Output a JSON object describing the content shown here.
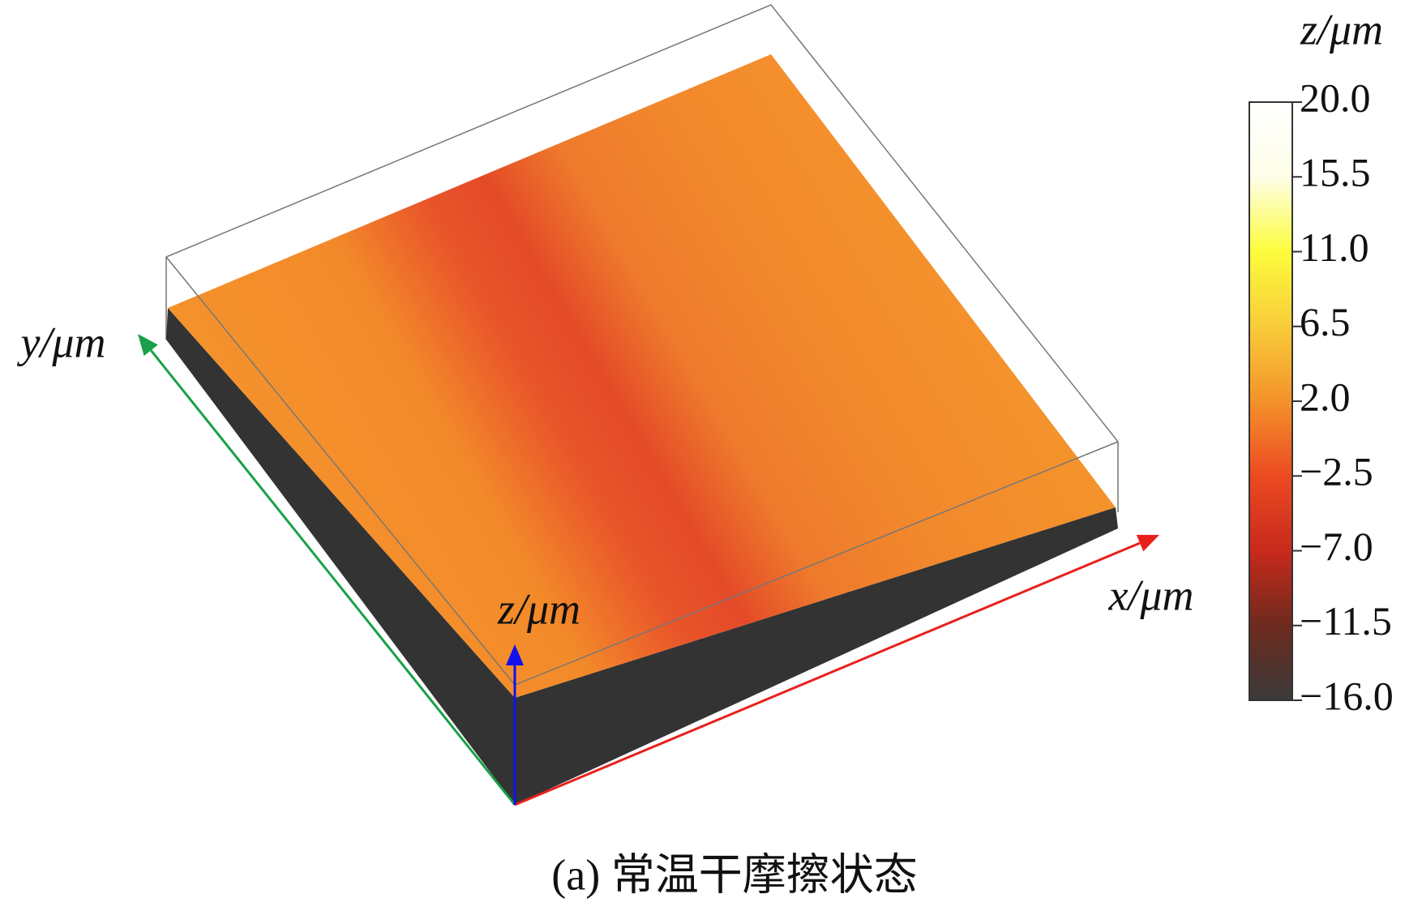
{
  "chart_data": {
    "type": "surface3d",
    "caption": "(a) 常温干摩擦状态",
    "xlabel": "x/μm",
    "ylabel": "y/μm",
    "zlabel": "z/μm",
    "x_axis_color": "#e8201c",
    "y_axis_color": "#1aa04a",
    "z_axis_color": "#1010f0",
    "colorbar": {
      "title": "z/μm",
      "lim": [
        -16,
        20
      ],
      "ticks": [
        {
          "value": 20,
          "label": "20.0"
        },
        {
          "value": 15.5,
          "label": "15.5"
        },
        {
          "value": 11,
          "label": "11.0"
        },
        {
          "value": 6.5,
          "label": "6.5"
        },
        {
          "value": 2,
          "label": "2.0"
        },
        {
          "value": -2.5,
          "label": "−2.5"
        },
        {
          "value": -7,
          "label": "−7.0"
        },
        {
          "value": -11.5,
          "label": "−11.5"
        },
        {
          "value": -16,
          "label": "−16.0"
        }
      ],
      "colors": [
        "#3a3a3a",
        "#6e2a1e",
        "#c82a1c",
        "#ec4a22",
        "#f4922a",
        "#f8cc3a",
        "#fcfc3c",
        "#fefee8",
        "#ffffff"
      ]
    }
  }
}
